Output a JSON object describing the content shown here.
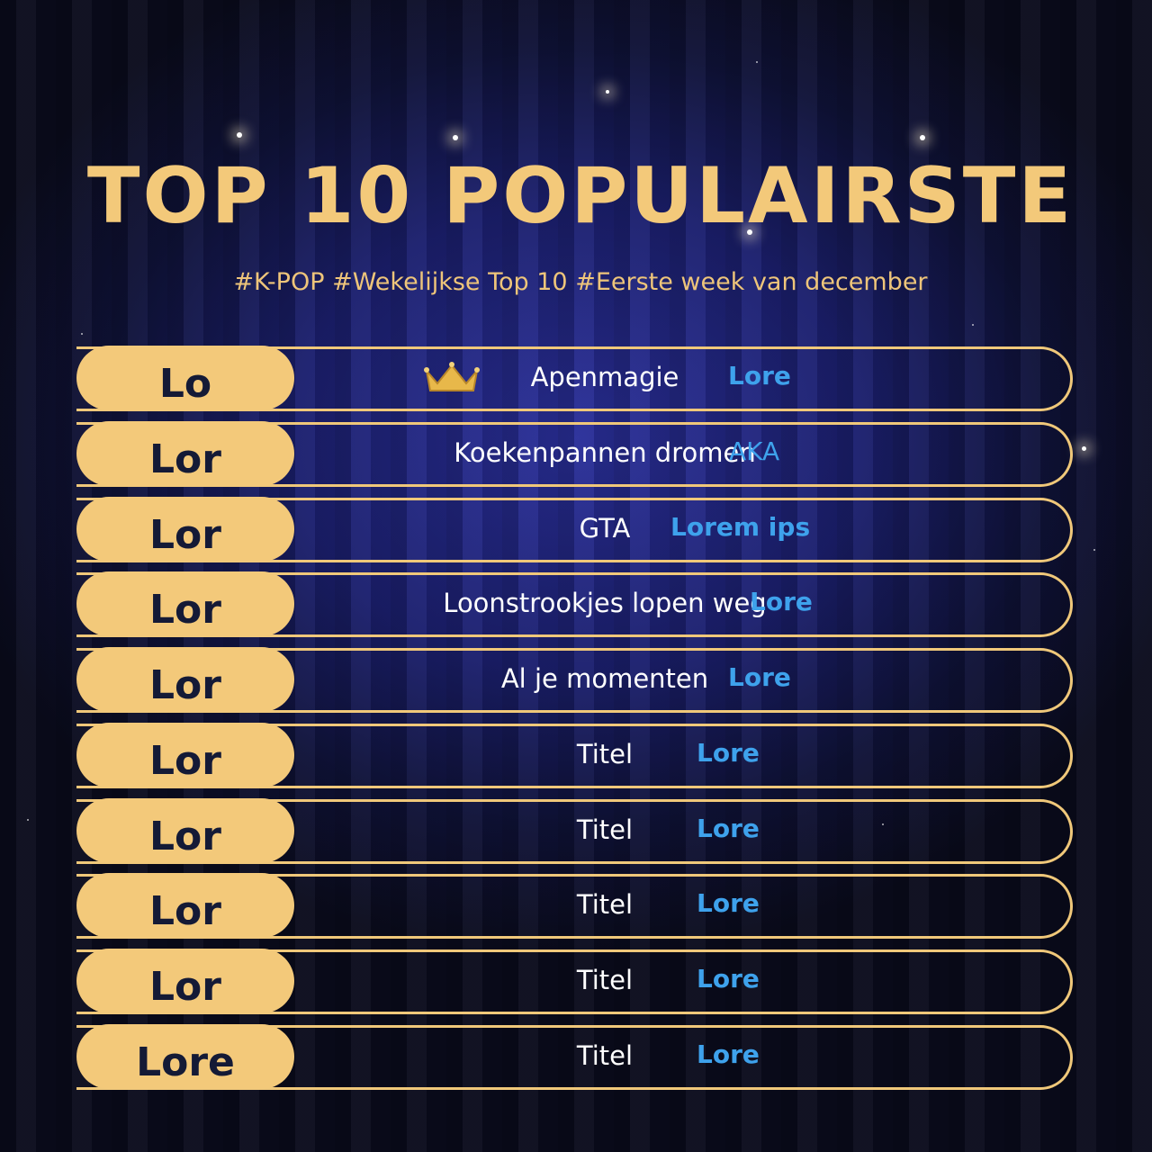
{
  "header": {
    "title": "TOP 10 POPULAIRSTE",
    "subtitle": "#K-POP #Wekelijkse Top 10 #Eerste week van december"
  },
  "rows": [
    {
      "rank": "Lo",
      "title": "Apenmagie",
      "artist": "Lore"
    },
    {
      "rank": "Lor",
      "title": "Koekenpannen dromen",
      "artist": "AKA"
    },
    {
      "rank": "Lor",
      "title": "GTA",
      "artist": "Lorem ips"
    },
    {
      "rank": "Lor",
      "title": "Loonstrookjes lopen weg",
      "artist": "Lore"
    },
    {
      "rank": "Lor",
      "title": "Al je momenten",
      "artist": "Lore"
    },
    {
      "rank": "Lor",
      "title": "Titel",
      "artist": "Lore"
    },
    {
      "rank": "Lor",
      "title": "Titel",
      "artist": "Lore"
    },
    {
      "rank": "Lor",
      "title": "Titel",
      "artist": "Lore"
    },
    {
      "rank": "Lor",
      "title": "Titel",
      "artist": "Lore"
    },
    {
      "rank": "Lore",
      "title": "Titel",
      "artist": "Lore"
    }
  ]
}
